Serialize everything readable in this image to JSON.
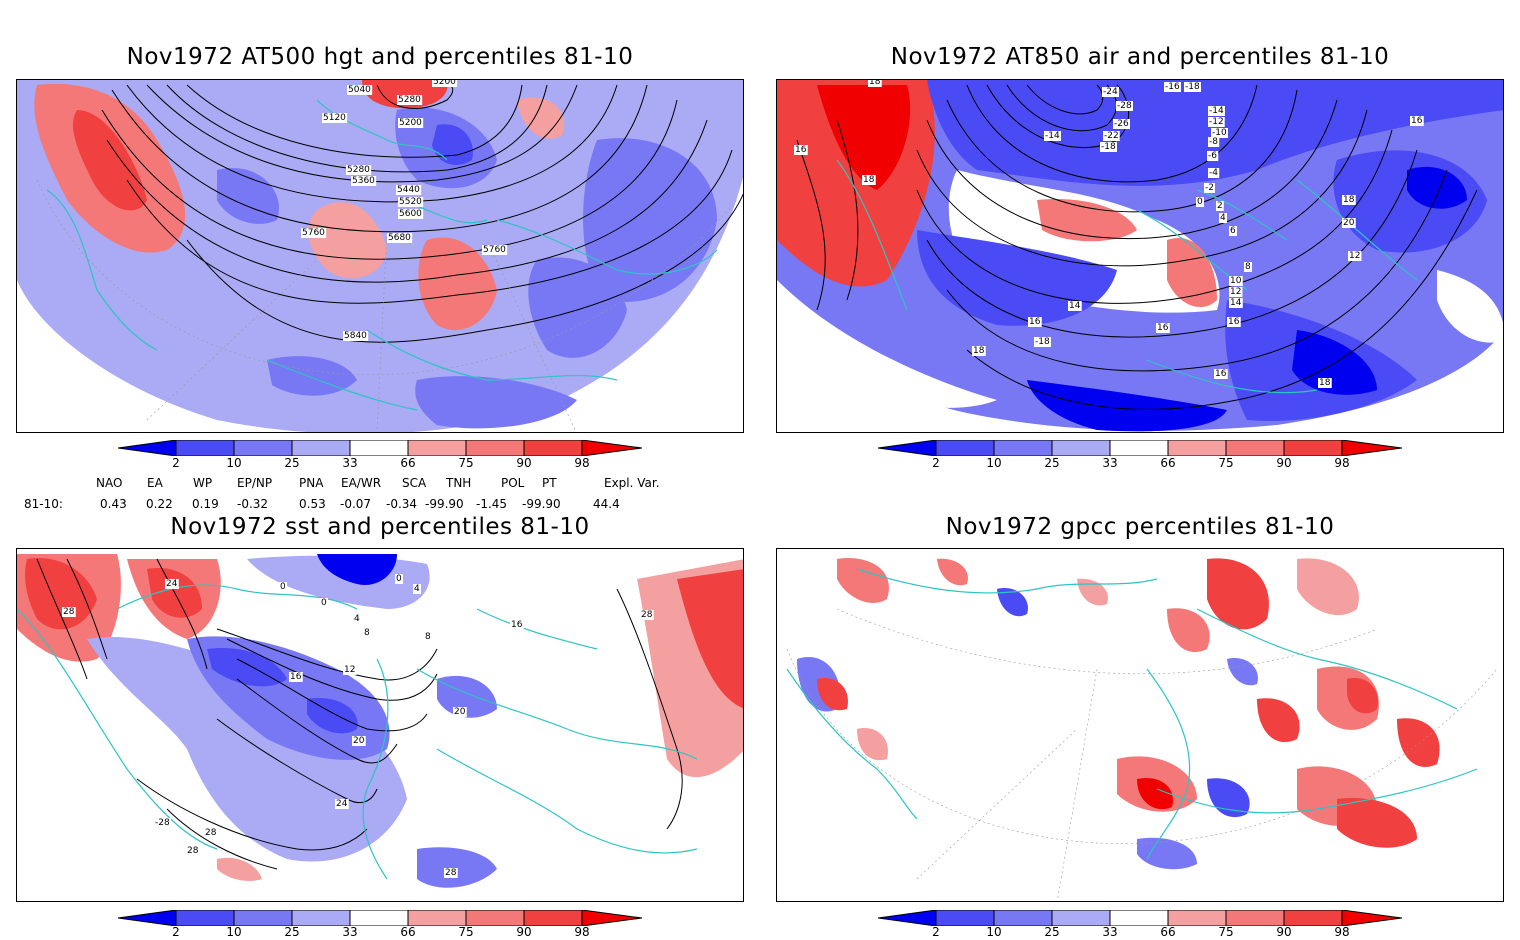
{
  "colors": {
    "coast": "#2ec4c4",
    "c2": "#0000f0",
    "c10": "#4b4bf5",
    "c25": "#7878f5",
    "c33": "#aaaaf5",
    "c66": "#f5a0a0",
    "c75": "#f57878",
    "c90": "#f04040",
    "c98": "#f00000"
  },
  "panels": {
    "hgt": {
      "title": "Nov1972 AT500 hgt and percentiles 81-10",
      "contour_labels": [
        "5040",
        "5200",
        "5280",
        "5120",
        "5200",
        "5280",
        "5360",
        "5440",
        "5520",
        "5600",
        "5680",
        "5760",
        "5760",
        "5840"
      ]
    },
    "air": {
      "title": "Nov1972 AT850 air and percentiles 81-10",
      "contour_labels": [
        "18",
        "16",
        "18",
        "-16",
        "-18",
        "-24",
        "-28",
        "-26",
        "-14",
        "-18",
        "-22",
        "-14",
        "-12",
        "-10",
        "-8",
        "-6",
        "-4",
        "-2",
        "0",
        "2",
        "4",
        "6",
        "8",
        "10",
        "12",
        "14",
        "16",
        "16",
        "18",
        "20",
        "12",
        "14",
        "16",
        "-18",
        "16",
        "18",
        "16",
        "18"
      ]
    },
    "sst": {
      "title": "Nov1972 sst and percentiles 81-10",
      "contour_labels": [
        "28",
        "24",
        "0",
        "0",
        "4",
        "8",
        "12",
        "16",
        "0",
        "4",
        "8",
        "16",
        "20",
        "20",
        "24",
        "28",
        "28",
        "-28",
        "28",
        "28"
      ]
    },
    "gpcc": {
      "title": "Nov1972 gpcc percentiles 81-10"
    }
  },
  "colorbar": {
    "labels": [
      "2",
      "10",
      "25",
      "33",
      "66",
      "75",
      "90",
      "98"
    ]
  },
  "indices": {
    "headers": [
      "NAO",
      "EA",
      "WP",
      "EP/NP",
      "PNA",
      "EA/WR",
      "SCA",
      "TNH",
      "POL",
      "PT",
      "Expl. Var."
    ],
    "row_label": "81-10:",
    "values": [
      "0.43",
      "0.22",
      "0.19",
      "-0.32",
      "0.53",
      "-0.07",
      "-0.34",
      "-99.90",
      "-1.45",
      "-99.90",
      "44.4"
    ]
  }
}
